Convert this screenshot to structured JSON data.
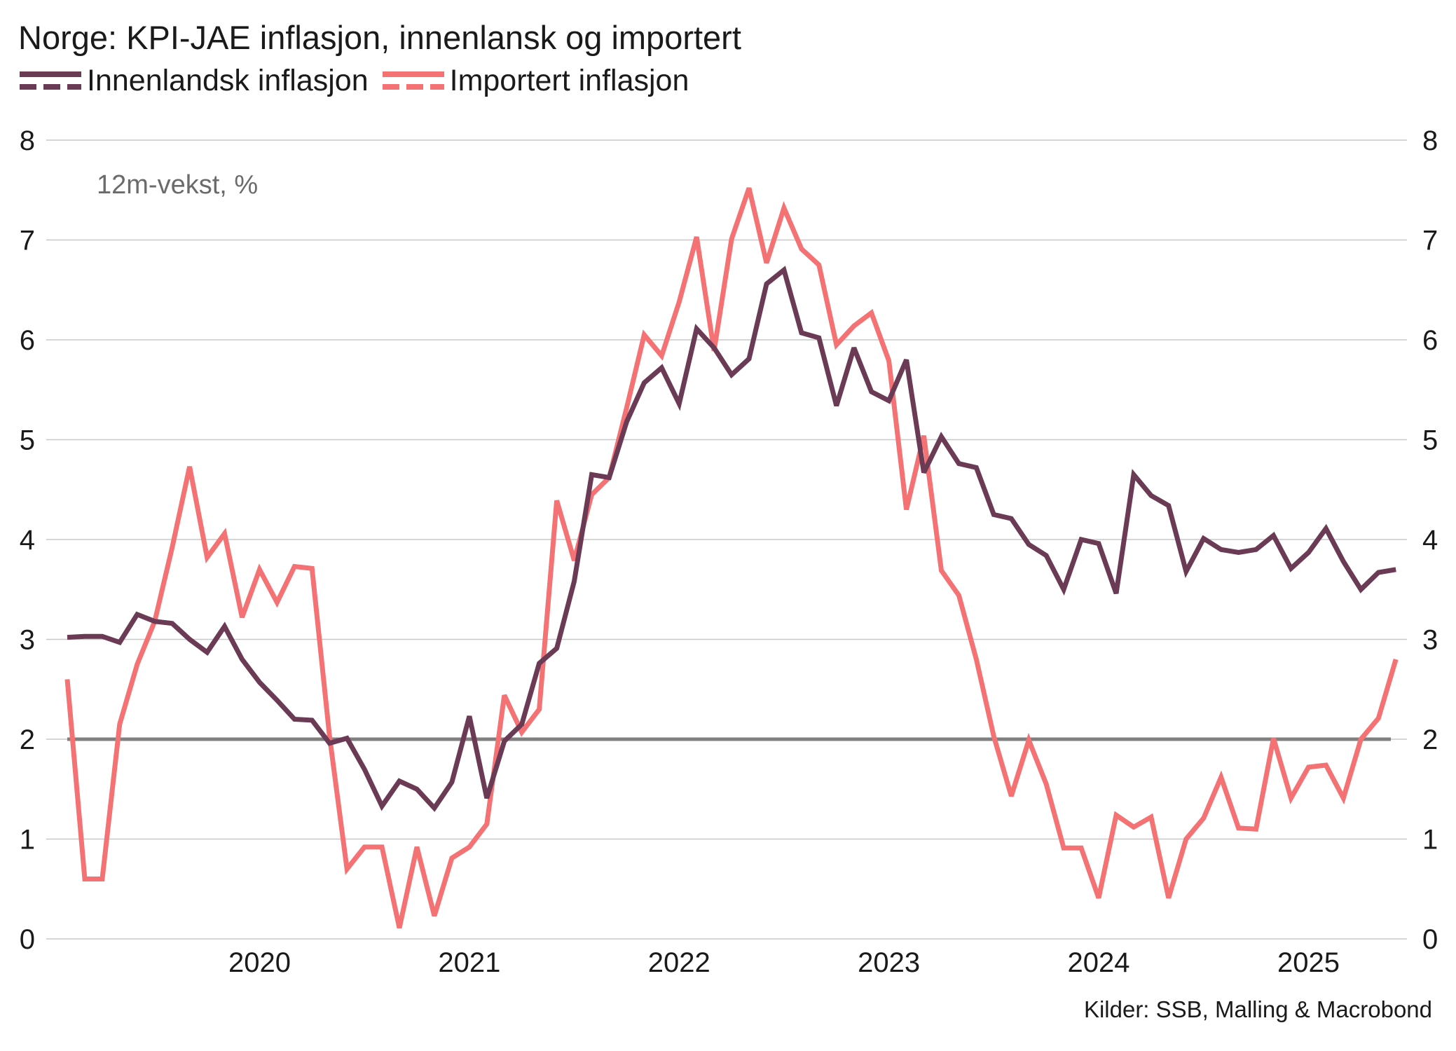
{
  "title": "Norge: KPI-JAE inflasjon, innenlansk og importert",
  "source": "Kilder: SSB, Malling & Macrobond",
  "colors": {
    "domestic": "#6b3a55",
    "imported": "#f47174",
    "reference": "#808080",
    "grid": "#c8c8c8"
  },
  "chart_data": {
    "type": "line",
    "title": "Norge: KPI-JAE inflasjon, innenlansk og importert",
    "annotation": "12m-vekst, %",
    "ylim": [
      0,
      8
    ],
    "y_ticks": [
      "0",
      "1",
      "2",
      "3",
      "4",
      "5",
      "6",
      "7",
      "8"
    ],
    "x_labels": [
      "2020",
      "2021",
      "2022",
      "2023",
      "2024",
      "2025"
    ],
    "x_start": "2019-07",
    "x_end": "2025-11",
    "grid": true,
    "legend_position": "top-left",
    "reference_line": {
      "value": 2
    },
    "series": [
      {
        "name": "Innenlandsk inflasjon",
        "color": "#6b3a55",
        "values": [
          3.02,
          3.03,
          3.03,
          2.97,
          3.25,
          3.18,
          3.16,
          3.0,
          2.87,
          3.13,
          2.8,
          2.57,
          2.39,
          2.2,
          2.19,
          1.96,
          2.01,
          1.7,
          1.33,
          1.58,
          1.5,
          1.31,
          1.57,
          2.23,
          1.41,
          1.98,
          2.15,
          2.76,
          2.91,
          3.58,
          4.65,
          4.62,
          5.18,
          5.57,
          5.72,
          5.36,
          6.11,
          5.92,
          5.65,
          5.81,
          6.56,
          6.7,
          6.07,
          6.02,
          5.34,
          5.92,
          5.48,
          5.39,
          5.8,
          4.67,
          5.03,
          4.76,
          4.72,
          4.25,
          4.21,
          3.95,
          3.84,
          3.5,
          4.0,
          3.96,
          3.46,
          4.65,
          4.44,
          4.34,
          3.68,
          4.01,
          3.9,
          3.87,
          3.9,
          4.04,
          3.71,
          3.87,
          4.11,
          3.78,
          3.5,
          3.67,
          3.7
        ]
      },
      {
        "name": "Importert inflasjon",
        "color": "#f47174",
        "values": [
          2.6,
          0.6,
          0.6,
          2.15,
          2.75,
          3.18,
          3.92,
          4.73,
          3.82,
          4.06,
          3.22,
          3.7,
          3.37,
          3.73,
          3.71,
          2.03,
          0.7,
          0.92,
          0.92,
          0.11,
          0.92,
          0.23,
          0.81,
          0.92,
          1.15,
          2.44,
          2.07,
          2.3,
          4.39,
          3.79,
          4.45,
          4.62,
          5.32,
          6.05,
          5.84,
          6.38,
          7.03,
          5.89,
          7.01,
          7.52,
          6.77,
          7.32,
          6.91,
          6.75,
          5.95,
          6.14,
          6.27,
          5.79,
          4.3,
          5.04,
          3.69,
          3.44,
          2.8,
          2.03,
          1.43,
          1.99,
          1.55,
          0.91,
          0.91,
          0.41,
          1.24,
          1.12,
          1.22,
          0.41,
          1.0,
          1.21,
          1.62,
          1.11,
          1.1,
          2.01,
          1.41,
          1.72,
          1.74,
          1.41,
          2.0,
          2.21,
          2.8
        ]
      }
    ]
  }
}
